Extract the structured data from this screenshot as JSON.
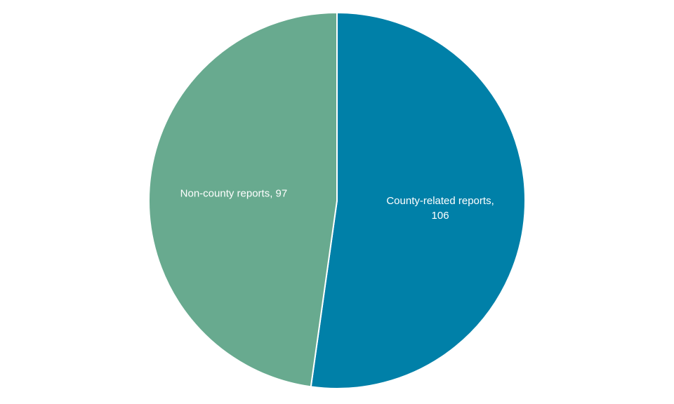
{
  "chart_data": {
    "type": "pie",
    "title": "",
    "slices": [
      {
        "label": "County-related reports",
        "value": 106,
        "color": "#0080A8",
        "label_lines": [
          "County-related reports,",
          "106"
        ]
      },
      {
        "label": "Non-county reports",
        "value": 97,
        "color": "#68AA8F",
        "label_lines": [
          "Non-county reports, 97"
        ]
      }
    ],
    "start": "top",
    "direction": "clockwise",
    "separator_color": "#ffffff",
    "legend": "none"
  }
}
